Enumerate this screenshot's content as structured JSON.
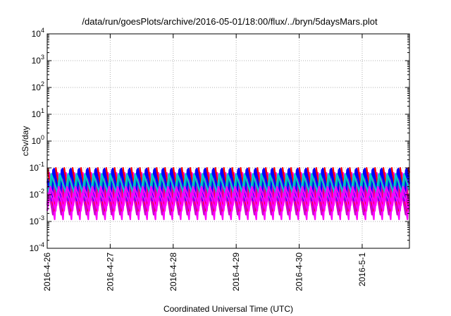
{
  "chart_data": {
    "type": "line",
    "title": "/data/run/goesPlots/archive/2016-05-01/18:00/flux/../bryn/5daysMars.plot",
    "xlabel": "Coordinated Universal Time (UTC)",
    "ylabel": "cSv/day",
    "yscale": "log",
    "ylim": [
      0.0001,
      10000
    ],
    "y_ticks": [
      {
        "base": "10",
        "exp": "-4"
      },
      {
        "base": "10",
        "exp": "-3"
      },
      {
        "base": "10",
        "exp": "-2"
      },
      {
        "base": "10",
        "exp": "-1"
      },
      {
        "base": "10",
        "exp": "0"
      },
      {
        "base": "10",
        "exp": "1"
      },
      {
        "base": "10",
        "exp": "2"
      },
      {
        "base": "10",
        "exp": "3"
      },
      {
        "base": "10",
        "exp": "4"
      }
    ],
    "x_ticks": [
      "2016-4-26",
      "2016-4-27",
      "2016-4-28",
      "2016-4-29",
      "2016-4-30",
      "2016-5-1"
    ],
    "xlim": [
      "2016-04-26 00:00",
      "2016-05-01 18:00"
    ],
    "grid": true,
    "cycles_per_day": 7.5,
    "series": [
      {
        "color": "#ff00ff",
        "values": [
          0.004,
          0.065
        ]
      },
      {
        "color": "#ff00ff",
        "values": [
          0.0012,
          0.035
        ]
      },
      {
        "color": "#ff0000",
        "values": [
          0.0025,
          0.1
        ]
      },
      {
        "color": "#cc00cc",
        "values": [
          0.0018,
          0.045
        ]
      },
      {
        "color": "#0000ff",
        "values": [
          0.006,
          0.095
        ]
      },
      {
        "color": "#0000ff",
        "values": [
          0.01,
          0.085
        ]
      },
      {
        "color": "#00aaaa",
        "values": [
          0.008,
          0.05
        ]
      },
      {
        "color": "#00cccc",
        "values": [
          0.012,
          0.06
        ]
      },
      {
        "color": "#ff00ff",
        "values": [
          0.004,
          0.02
        ]
      },
      {
        "color": "#ff00ff",
        "values": [
          0.0025,
          0.015
        ]
      }
    ]
  }
}
